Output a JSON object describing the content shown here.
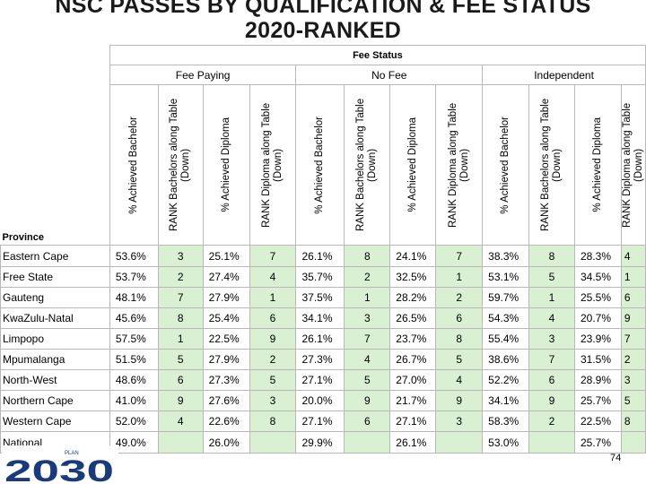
{
  "title_line1": "NSC PASSES BY QUALIFICATION & FEE STATUS",
  "title_line2": "2020-RANKED",
  "header": {
    "fee_status": "Fee Status",
    "groups": [
      "Fee Paying",
      "No Fee",
      "Independent"
    ],
    "province_label": "Province",
    "columns": [
      "% Achieved Bachelor",
      "RANK Bachelors along Table (Down)",
      "% Achieved Diploma",
      "RANK Diploma along Table (Down)"
    ]
  },
  "rows": [
    {
      "province": "Eastern Cape",
      "v": [
        "53.6%",
        "3",
        "25.1%",
        "7",
        "26.1%",
        "8",
        "24.1%",
        "7",
        "38.3%",
        "8",
        "28.3%",
        "4"
      ]
    },
    {
      "province": "Free State",
      "v": [
        "53.7%",
        "2",
        "27.4%",
        "4",
        "35.7%",
        "2",
        "32.5%",
        "1",
        "53.1%",
        "5",
        "34.5%",
        "1"
      ]
    },
    {
      "province": "Gauteng",
      "v": [
        "48.1%",
        "7",
        "27.9%",
        "1",
        "37.5%",
        "1",
        "28.2%",
        "2",
        "59.7%",
        "1",
        "25.5%",
        "6"
      ]
    },
    {
      "province": "KwaZulu-Natal",
      "v": [
        "45.6%",
        "8",
        "25.4%",
        "6",
        "34.1%",
        "3",
        "26.5%",
        "6",
        "54.3%",
        "4",
        "20.7%",
        "9"
      ]
    },
    {
      "province": "Limpopo",
      "v": [
        "57.5%",
        "1",
        "22.5%",
        "9",
        "26.1%",
        "7",
        "23.7%",
        "8",
        "55.4%",
        "3",
        "23.9%",
        "7"
      ]
    },
    {
      "province": "Mpumalanga",
      "v": [
        "51.5%",
        "5",
        "27.9%",
        "2",
        "27.3%",
        "4",
        "26.7%",
        "5",
        "38.6%",
        "7",
        "31.5%",
        "2"
      ]
    },
    {
      "province": "North-West",
      "v": [
        "48.6%",
        "6",
        "27.3%",
        "5",
        "27.1%",
        "5",
        "27.0%",
        "4",
        "52.2%",
        "6",
        "28.9%",
        "3"
      ]
    },
    {
      "province": "Northern Cape",
      "v": [
        "41.0%",
        "9",
        "27.6%",
        "3",
        "20.0%",
        "9",
        "21.7%",
        "9",
        "34.1%",
        "9",
        "25.7%",
        "5"
      ]
    },
    {
      "province": "Western Cape",
      "v": [
        "52.0%",
        "4",
        "22.6%",
        "8",
        "27.1%",
        "6",
        "27.1%",
        "3",
        "58.3%",
        "2",
        "22.5%",
        "8"
      ]
    },
    {
      "province": "National",
      "v": [
        "49.0%",
        "",
        "26.0%",
        "",
        "29.9%",
        "",
        "26.1%",
        "",
        "53.0%",
        "",
        "25.7%",
        ""
      ]
    }
  ],
  "logo": {
    "text": "2030",
    "small_text": "PLAN"
  },
  "page_number": "74",
  "colors": {
    "rank_fill": "#d9f0d3",
    "logo_blue": "#1a3a7a",
    "border": "#b8b8b8"
  }
}
